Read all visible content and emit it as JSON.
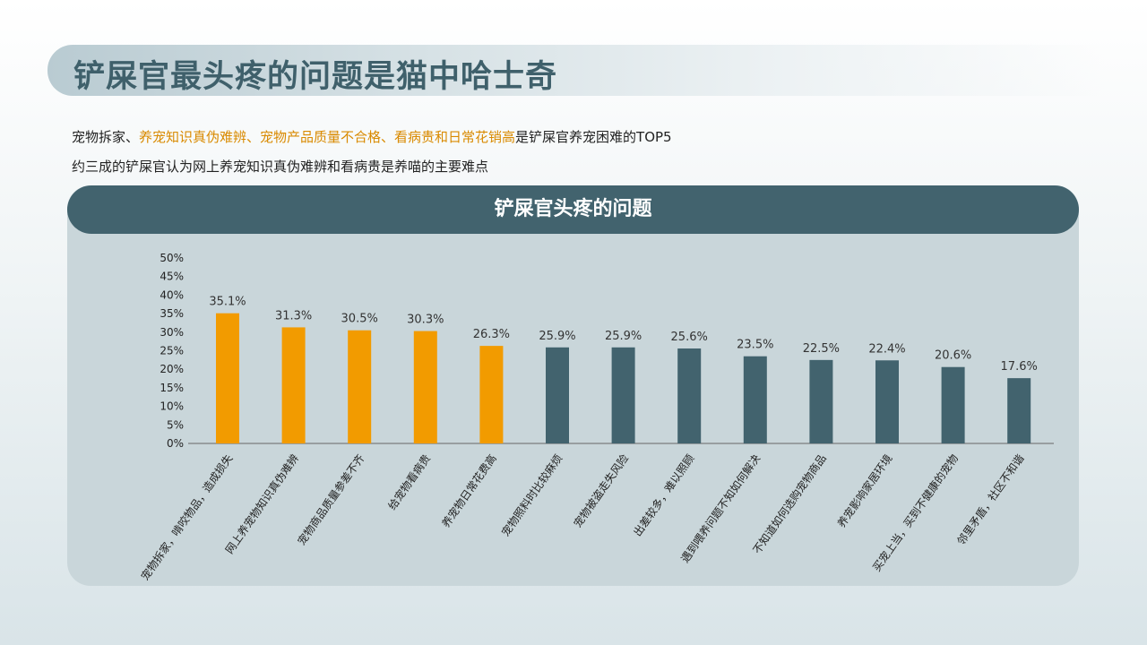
{
  "page": {
    "title": "铲屎官最头疼的问题是猫中哈士奇",
    "line1": {
      "prefix": "宠物拆家、",
      "highlight": "养宠知识真伪难辨、宠物产品质量不合格、看病贵和日常花销高",
      "suffix": "是铲屎官养宠困难的TOP5"
    },
    "line2": "约三成的铲屎官认为网上养宠知识真伪难辨和看病贵是养喵的主要难点"
  },
  "colors": {
    "highlight_bar": "#f29b00",
    "normal_bar": "#42636e",
    "header": "#42636e",
    "highlight_text": "#d98a00"
  },
  "chart_data": {
    "type": "bar",
    "title": "铲屎官头疼的问题",
    "categories": [
      "宠物拆家，啃咬物品，造成损失",
      "网上养宠物知识真伪难辨",
      "宠物商品质量参差不齐",
      "给宠物看病贵",
      "养宠物日常花费高",
      "宠物照料时比较麻烦",
      "宠物被盗走失风险",
      "出差较多，难以照顾",
      "遇到喂养问题不知如何解决",
      "不知道如何选购宠物商品",
      "养宠影响家居环境",
      "买宠上当，买到不健康的宠物",
      "邻里矛盾，社区不和谐"
    ],
    "values": [
      35.1,
      31.3,
      30.5,
      30.3,
      26.3,
      25.9,
      25.9,
      25.6,
      23.5,
      22.5,
      22.4,
      20.6,
      17.6
    ],
    "value_labels": [
      "35.1%",
      "31.3%",
      "30.5%",
      "30.3%",
      "26.3%",
      "25.9%",
      "25.9%",
      "25.6%",
      "23.5%",
      "22.5%",
      "22.4%",
      "20.6%",
      "17.6%"
    ],
    "highlight_top": 5,
    "ylim": [
      0,
      50
    ],
    "y_ticks": [
      "0%",
      "5%",
      "10%",
      "15%",
      "20%",
      "25%",
      "30%",
      "35%",
      "40%",
      "45%",
      "50%"
    ],
    "grid": false,
    "legend": "none"
  }
}
